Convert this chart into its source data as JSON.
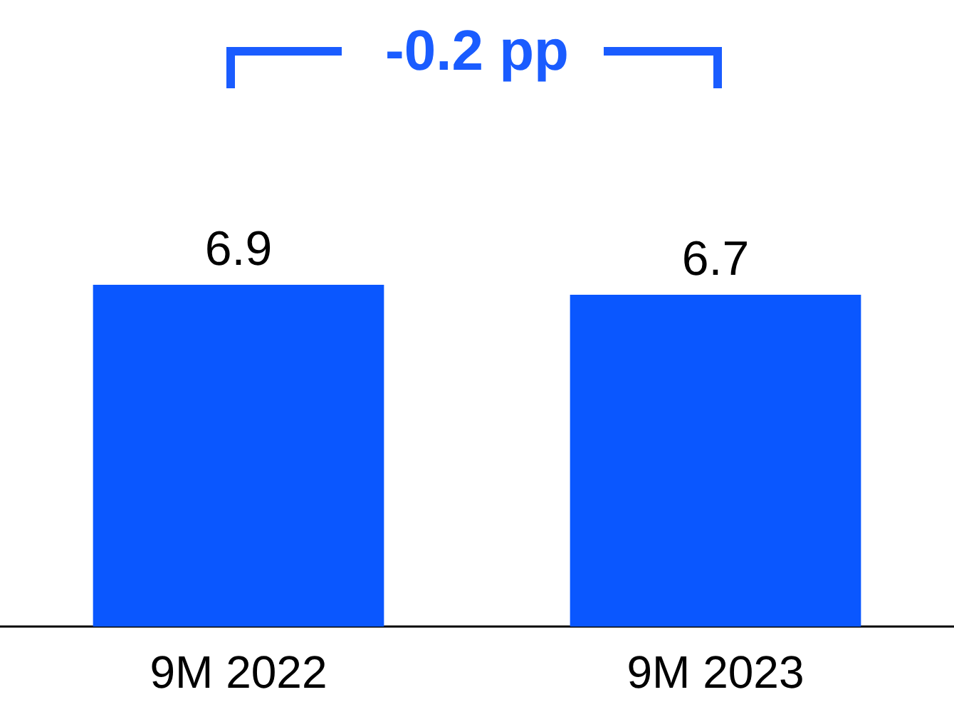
{
  "chart_data": {
    "type": "bar",
    "categories": [
      "9M 2022",
      "9M 2023"
    ],
    "values": [
      6.9,
      6.7
    ],
    "color": "#0a57ff",
    "data_labels": true,
    "annotations": [
      "-0.2 pp"
    ]
  }
}
